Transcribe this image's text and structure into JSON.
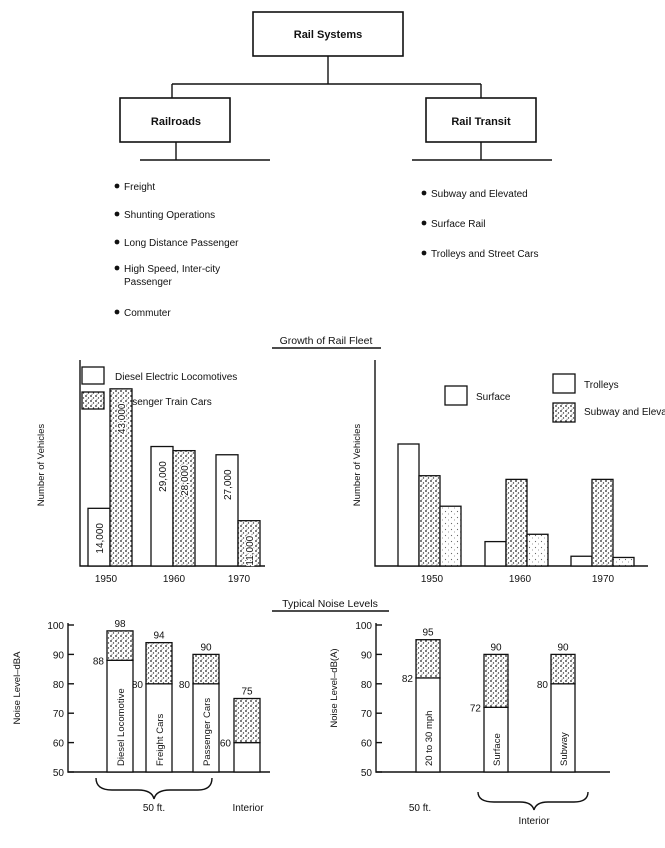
{
  "hierarchy": {
    "root": "Rail Systems",
    "branches": [
      {
        "label": "Railroads",
        "items": [
          "Freight",
          "Shunting Operations",
          "Long Distance Passenger",
          "High Speed, Inter-city",
          "Passenger",
          "Commuter"
        ]
      },
      {
        "label": "Rail Transit",
        "items": [
          "Subway and Elevated",
          "Surface Rail",
          "Trolleys and Street Cars"
        ]
      }
    ]
  },
  "fleet_title": "Growth of Rail Fleet",
  "noise_title": "Typical Noise Levels",
  "chart_data": [
    {
      "type": "bar",
      "ylabel": "Number of Vehicles",
      "categories": [
        "1950",
        "1960",
        "1970"
      ],
      "ylim": [
        0,
        50000
      ],
      "series": [
        {
          "name": "Diesel Electric Locomotives",
          "values": [
            14000,
            29000,
            27000
          ],
          "labels": [
            "14,000",
            "29,000",
            "27,000"
          ]
        },
        {
          "name": "Passenger Train Cars",
          "values": [
            43000,
            28000,
            11000
          ],
          "labels": [
            "43,000",
            "28,000",
            "11,000"
          ]
        }
      ]
    },
    {
      "type": "bar",
      "ylabel": "Number of Vehicles",
      "categories": [
        "1950",
        "1960",
        "1970"
      ],
      "ylim": [
        0,
        100
      ],
      "series": [
        {
          "name": "Surface",
          "values": [
            100,
            20,
            8
          ]
        },
        {
          "name": "Subway and Elevated",
          "values": [
            74,
            71,
            71
          ]
        },
        {
          "name": "Trolleys",
          "values": [
            49,
            26,
            7
          ]
        }
      ]
    },
    {
      "type": "bar",
      "ylabel": "Noise Level–dBA",
      "ylim": [
        50,
        100
      ],
      "yticks": [
        "50",
        "60",
        "70",
        "80",
        "90",
        "100"
      ],
      "bars": [
        {
          "label": "Diesel Locomotive",
          "low": 88,
          "high": 98,
          "low_label": "88",
          "high_label": "98"
        },
        {
          "label": "Freight Cars",
          "low": 80,
          "high": 94,
          "low_label": "80",
          "high_label": "94"
        },
        {
          "label": "Passenger Cars",
          "low": 80,
          "high": 90,
          "low_label": "80",
          "high_label": "90"
        },
        {
          "label": "",
          "low": 60,
          "high": 75,
          "low_label": "60",
          "high_label": "75"
        }
      ],
      "groups": [
        "50 ft.",
        "Interior"
      ]
    },
    {
      "type": "bar",
      "ylabel": "Noise Level–dB(A)",
      "ylim": [
        50,
        100
      ],
      "yticks": [
        "50",
        "60",
        "70",
        "80",
        "90",
        "100"
      ],
      "bars": [
        {
          "label": "20 to 30 mph",
          "low": 82,
          "high": 95,
          "low_label": "82",
          "high_label": "95"
        },
        {
          "label": "Surface",
          "low": 72,
          "high": 90,
          "low_label": "72",
          "high_label": "90"
        },
        {
          "label": "Subway",
          "low": 80,
          "high": 90,
          "low_label": "80",
          "high_label": "90"
        }
      ],
      "groups": [
        "50 ft.",
        "Interior"
      ]
    }
  ]
}
